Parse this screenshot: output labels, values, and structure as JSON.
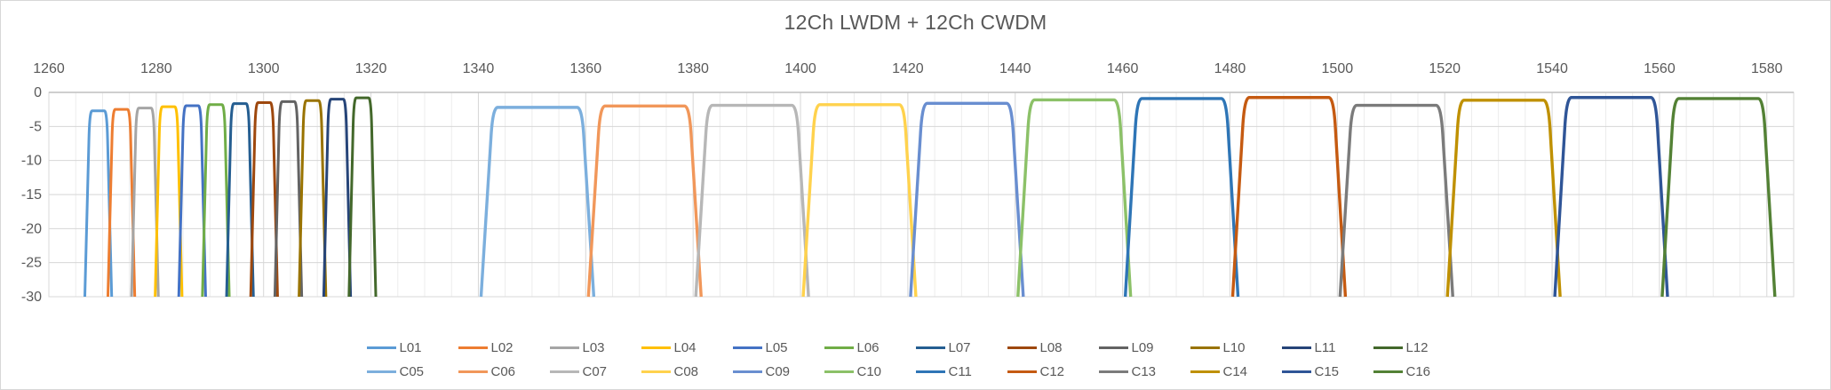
{
  "title": "12Ch LWDM + 12Ch CWDM",
  "chart_data": {
    "type": "line",
    "title": "12Ch LWDM + 12Ch CWDM",
    "xlabel": "",
    "ylabel": "",
    "grid": "on",
    "legend_position": "bottom",
    "x_axis": {
      "min": 1260,
      "max": 1585,
      "minor_grid_step": 5,
      "major_grid_step": 20,
      "tick_labels": [
        1260,
        1280,
        1300,
        1320,
        1340,
        1360,
        1380,
        1400,
        1420,
        1440,
        1460,
        1480,
        1500,
        1520,
        1540,
        1560,
        1580
      ],
      "labels_position": "top"
    },
    "y_axis": {
      "min": -30,
      "max": 0,
      "grid_step": 5,
      "tick_labels": [
        0,
        -5,
        -10,
        -15,
        -20,
        -25,
        -30
      ]
    },
    "series_note": "Each series is a flat-top bandpass filter response: flat top at top_level_db between center±top_halfwidth_nm, sloping to -30 dB at center±base_halfwidth_nm",
    "series": [
      {
        "name": "L01",
        "group": "LWDM",
        "color": "#5B9BD5",
        "center_nm": 1269.2,
        "top_level_db": -2.7,
        "top_halfwidth_nm": 1.6,
        "base_halfwidth_nm": 2.5
      },
      {
        "name": "L02",
        "group": "LWDM",
        "color": "#ED7D31",
        "center_nm": 1273.5,
        "top_level_db": -2.5,
        "top_halfwidth_nm": 1.6,
        "base_halfwidth_nm": 2.5
      },
      {
        "name": "L03",
        "group": "LWDM",
        "color": "#A5A5A5",
        "center_nm": 1277.9,
        "top_level_db": -2.3,
        "top_halfwidth_nm": 1.6,
        "base_halfwidth_nm": 2.5
      },
      {
        "name": "L04",
        "group": "LWDM",
        "color": "#FFC000",
        "center_nm": 1282.3,
        "top_level_db": -2.1,
        "top_halfwidth_nm": 1.6,
        "base_halfwidth_nm": 2.5
      },
      {
        "name": "L05",
        "group": "LWDM",
        "color": "#4472C4",
        "center_nm": 1286.7,
        "top_level_db": -1.95,
        "top_halfwidth_nm": 1.6,
        "base_halfwidth_nm": 2.5
      },
      {
        "name": "L06",
        "group": "LWDM",
        "color": "#70AD47",
        "center_nm": 1291.1,
        "top_level_db": -1.8,
        "top_halfwidth_nm": 1.6,
        "base_halfwidth_nm": 2.5
      },
      {
        "name": "L07",
        "group": "LWDM",
        "color": "#255E91",
        "center_nm": 1295.6,
        "top_level_db": -1.65,
        "top_halfwidth_nm": 1.6,
        "base_halfwidth_nm": 2.5
      },
      {
        "name": "L08",
        "group": "LWDM",
        "color": "#9E480E",
        "center_nm": 1300.1,
        "top_level_db": -1.5,
        "top_halfwidth_nm": 1.6,
        "base_halfwidth_nm": 2.5
      },
      {
        "name": "L09",
        "group": "LWDM",
        "color": "#636363",
        "center_nm": 1304.6,
        "top_level_db": -1.35,
        "top_halfwidth_nm": 1.6,
        "base_halfwidth_nm": 2.5
      },
      {
        "name": "L10",
        "group": "LWDM",
        "color": "#997300",
        "center_nm": 1309.1,
        "top_level_db": -1.2,
        "top_halfwidth_nm": 1.6,
        "base_halfwidth_nm": 2.5
      },
      {
        "name": "L11",
        "group": "LWDM",
        "color": "#264478",
        "center_nm": 1313.7,
        "top_level_db": -1.0,
        "top_halfwidth_nm": 1.6,
        "base_halfwidth_nm": 2.5
      },
      {
        "name": "L12",
        "group": "LWDM",
        "color": "#43682B",
        "center_nm": 1318.4,
        "top_level_db": -0.8,
        "top_halfwidth_nm": 1.6,
        "base_halfwidth_nm": 2.5
      },
      {
        "name": "C05",
        "group": "CWDM",
        "color": "#7CAFDD",
        "center_nm": 1351,
        "top_level_db": -2.2,
        "top_halfwidth_nm": 8.3,
        "base_halfwidth_nm": 10.5
      },
      {
        "name": "C06",
        "group": "CWDM",
        "color": "#F1975A",
        "center_nm": 1371,
        "top_level_db": -2.0,
        "top_halfwidth_nm": 8.3,
        "base_halfwidth_nm": 10.5
      },
      {
        "name": "C07",
        "group": "CWDM",
        "color": "#B7B7B7",
        "center_nm": 1391,
        "top_level_db": -1.9,
        "top_halfwidth_nm": 8.3,
        "base_halfwidth_nm": 10.5
      },
      {
        "name": "C08",
        "group": "CWDM",
        "color": "#FFD24D",
        "center_nm": 1411,
        "top_level_db": -1.8,
        "top_halfwidth_nm": 8.3,
        "base_halfwidth_nm": 10.5
      },
      {
        "name": "C09",
        "group": "CWDM",
        "color": "#698ED0",
        "center_nm": 1431,
        "top_level_db": -1.6,
        "top_halfwidth_nm": 8.3,
        "base_halfwidth_nm": 10.5
      },
      {
        "name": "C10",
        "group": "CWDM",
        "color": "#8CC168",
        "center_nm": 1451,
        "top_level_db": -1.1,
        "top_halfwidth_nm": 8.3,
        "base_halfwidth_nm": 10.5
      },
      {
        "name": "C11",
        "group": "CWDM",
        "color": "#2E75B6",
        "center_nm": 1471,
        "top_level_db": -0.9,
        "top_halfwidth_nm": 8.3,
        "base_halfwidth_nm": 10.5
      },
      {
        "name": "C12",
        "group": "CWDM",
        "color": "#C55A11",
        "center_nm": 1491,
        "top_level_db": -0.75,
        "top_halfwidth_nm": 8.3,
        "base_halfwidth_nm": 10.5
      },
      {
        "name": "C13",
        "group": "CWDM",
        "color": "#7B7B7B",
        "center_nm": 1511,
        "top_level_db": -1.9,
        "top_halfwidth_nm": 8.3,
        "base_halfwidth_nm": 10.5
      },
      {
        "name": "C14",
        "group": "CWDM",
        "color": "#BF9000",
        "center_nm": 1531,
        "top_level_db": -1.15,
        "top_halfwidth_nm": 8.3,
        "base_halfwidth_nm": 10.5
      },
      {
        "name": "C15",
        "group": "CWDM",
        "color": "#2F5597",
        "center_nm": 1551,
        "top_level_db": -0.75,
        "top_halfwidth_nm": 8.3,
        "base_halfwidth_nm": 10.5
      },
      {
        "name": "C16",
        "group": "CWDM",
        "color": "#538135",
        "center_nm": 1571,
        "top_level_db": -0.9,
        "top_halfwidth_nm": 8.3,
        "base_halfwidth_nm": 10.5
      }
    ],
    "legend": {
      "rows": [
        [
          "L01",
          "L02",
          "L03",
          "L04",
          "L05",
          "L06",
          "L07",
          "L08",
          "L09",
          "L10",
          "L11",
          "L12"
        ],
        [
          "C05",
          "C06",
          "C07",
          "C08",
          "C09",
          "C10",
          "C11",
          "C12",
          "C13",
          "C14",
          "C15",
          "C16"
        ]
      ]
    },
    "style_colors": {
      "text": "#595959",
      "grid_minor": "#ececec",
      "grid_major": "#d6d6d6",
      "axis_line": "#bfbfbf",
      "plot_border": "#d9d9d9",
      "frame_border": "#d7d7d7"
    }
  }
}
